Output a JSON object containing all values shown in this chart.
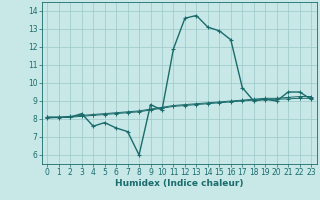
{
  "bg_color": "#c8e8e8",
  "grid_color": "#9dc8c8",
  "line_color": "#1a6b6b",
  "xlabel": "Humidex (Indice chaleur)",
  "xlim": [
    -0.5,
    23.5
  ],
  "ylim": [
    5.5,
    14.5
  ],
  "yticks": [
    6,
    7,
    8,
    9,
    10,
    11,
    12,
    13,
    14
  ],
  "xticks": [
    0,
    1,
    2,
    3,
    4,
    5,
    6,
    7,
    8,
    9,
    10,
    11,
    12,
    13,
    14,
    15,
    16,
    17,
    18,
    19,
    20,
    21,
    22,
    23
  ],
  "main_x": [
    0,
    1,
    2,
    3,
    4,
    5,
    6,
    7,
    8,
    9,
    10,
    11,
    12,
    13,
    14,
    15,
    16,
    17,
    18,
    19,
    20,
    21,
    22,
    23
  ],
  "main_y": [
    8.1,
    8.1,
    8.1,
    8.3,
    7.6,
    7.8,
    7.5,
    7.3,
    6.0,
    8.8,
    8.5,
    11.9,
    13.6,
    13.75,
    13.1,
    12.9,
    12.4,
    9.75,
    9.0,
    9.1,
    9.0,
    9.5,
    9.5,
    9.1
  ],
  "flat1_x": [
    0,
    1,
    2,
    3,
    4,
    5,
    6,
    7,
    8,
    9,
    10,
    11,
    12,
    13,
    14,
    15,
    16,
    17,
    18,
    19,
    20,
    21,
    22,
    23
  ],
  "flat1_y": [
    8.1,
    8.1,
    8.15,
    8.2,
    8.25,
    8.3,
    8.35,
    8.4,
    8.45,
    8.55,
    8.65,
    8.75,
    8.8,
    8.85,
    8.9,
    8.95,
    9.0,
    9.05,
    9.1,
    9.15,
    9.15,
    9.2,
    9.25,
    9.25
  ],
  "flat2_x": [
    0,
    1,
    2,
    3,
    4,
    5,
    6,
    7,
    8,
    9,
    10,
    11,
    12,
    13,
    14,
    15,
    16,
    17,
    18,
    19,
    20,
    21,
    22,
    23
  ],
  "flat2_y": [
    8.05,
    8.08,
    8.1,
    8.15,
    8.2,
    8.25,
    8.3,
    8.35,
    8.4,
    8.5,
    8.6,
    8.7,
    8.75,
    8.8,
    8.85,
    8.9,
    8.95,
    9.0,
    9.05,
    9.08,
    9.1,
    9.12,
    9.15,
    9.15
  ],
  "tick_fontsize": 5.5,
  "xlabel_fontsize": 6.5,
  "lw_main": 1.0,
  "lw_flat": 0.7,
  "marker_size": 2.5
}
